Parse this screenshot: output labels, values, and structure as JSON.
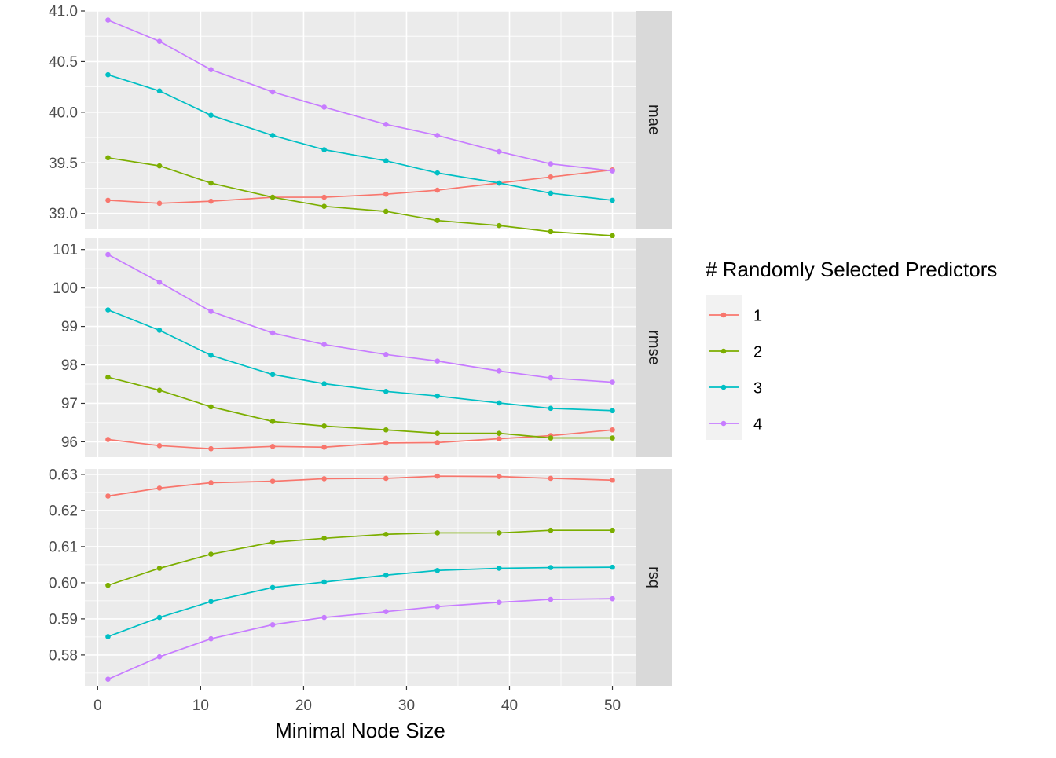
{
  "chart_data": {
    "type": "line",
    "xlabel": "Minimal Node Size",
    "x_ticks": [
      0,
      10,
      20,
      30,
      40,
      50
    ],
    "x": [
      1,
      6,
      11,
      17,
      22,
      28,
      33,
      39,
      44,
      50
    ],
    "legend": {
      "title": "# Randomly Selected Predictors",
      "placement": "right"
    },
    "series_names": [
      "1",
      "2",
      "3",
      "4"
    ],
    "colors": [
      "#F8766D",
      "#7CAE00",
      "#00BFC4",
      "#C77CFF"
    ],
    "grid": true,
    "facets": [
      {
        "label": "mae",
        "ylim": [
          38.85,
          41.0
        ],
        "y_ticks": [
          39.0,
          39.5,
          40.0,
          40.5,
          41.0
        ],
        "y_tick_labels": [
          "39.0",
          "39.5",
          "40.0",
          "40.5",
          "41.0"
        ],
        "series": [
          {
            "values": [
              39.13,
              39.1,
              39.12,
              39.16,
              39.16,
              39.19,
              39.23,
              39.3,
              39.36,
              39.43
            ]
          },
          {
            "values": [
              39.55,
              39.47,
              39.3,
              39.16,
              39.07,
              39.02,
              38.93,
              38.88,
              38.82,
              38.78
            ]
          },
          {
            "values": [
              40.37,
              40.21,
              39.97,
              39.77,
              39.63,
              39.52,
              39.4,
              39.3,
              39.2,
              39.13
            ]
          },
          {
            "values": [
              40.91,
              40.7,
              40.42,
              40.2,
              40.05,
              39.88,
              39.77,
              39.61,
              39.49,
              39.42
            ]
          }
        ]
      },
      {
        "label": "rmse",
        "ylim": [
          95.6,
          101.3
        ],
        "y_ticks": [
          96,
          97,
          98,
          99,
          100,
          101
        ],
        "y_tick_labels": [
          "96",
          "97",
          "98",
          "99",
          "100",
          "101"
        ],
        "series": [
          {
            "values": [
              96.06,
              95.9,
              95.82,
              95.88,
              95.86,
              95.97,
              95.98,
              96.08,
              96.16,
              96.31
            ]
          },
          {
            "values": [
              97.68,
              97.34,
              96.91,
              96.53,
              96.41,
              96.31,
              96.22,
              96.22,
              96.1,
              96.1
            ]
          },
          {
            "values": [
              99.43,
              98.9,
              98.25,
              97.75,
              97.51,
              97.31,
              97.19,
              97.01,
              96.87,
              96.81
            ]
          },
          {
            "values": [
              100.87,
              100.15,
              99.39,
              98.83,
              98.53,
              98.27,
              98.1,
              97.84,
              97.66,
              97.55
            ]
          }
        ]
      },
      {
        "label": "rsq",
        "ylim": [
          0.5715,
          0.6315
        ],
        "y_ticks": [
          0.58,
          0.59,
          0.6,
          0.61,
          0.62,
          0.63
        ],
        "y_tick_labels": [
          "0.58",
          "0.59",
          "0.60",
          "0.61",
          "0.62",
          "0.63"
        ],
        "series": [
          {
            "values": [
              0.624,
              0.6262,
              0.6277,
              0.6281,
              0.6288,
              0.6289,
              0.6295,
              0.6294,
              0.6289,
              0.6284
            ]
          },
          {
            "values": [
              0.5993,
              0.604,
              0.6079,
              0.6112,
              0.6123,
              0.6134,
              0.6138,
              0.6138,
              0.6145,
              0.6145
            ]
          },
          {
            "values": [
              0.5851,
              0.5904,
              0.5948,
              0.5987,
              0.6002,
              0.6021,
              0.6034,
              0.604,
              0.6042,
              0.6043
            ]
          },
          {
            "values": [
              0.5733,
              0.5795,
              0.5845,
              0.5884,
              0.5904,
              0.592,
              0.5934,
              0.5946,
              0.5954,
              0.5956
            ]
          }
        ]
      }
    ]
  }
}
